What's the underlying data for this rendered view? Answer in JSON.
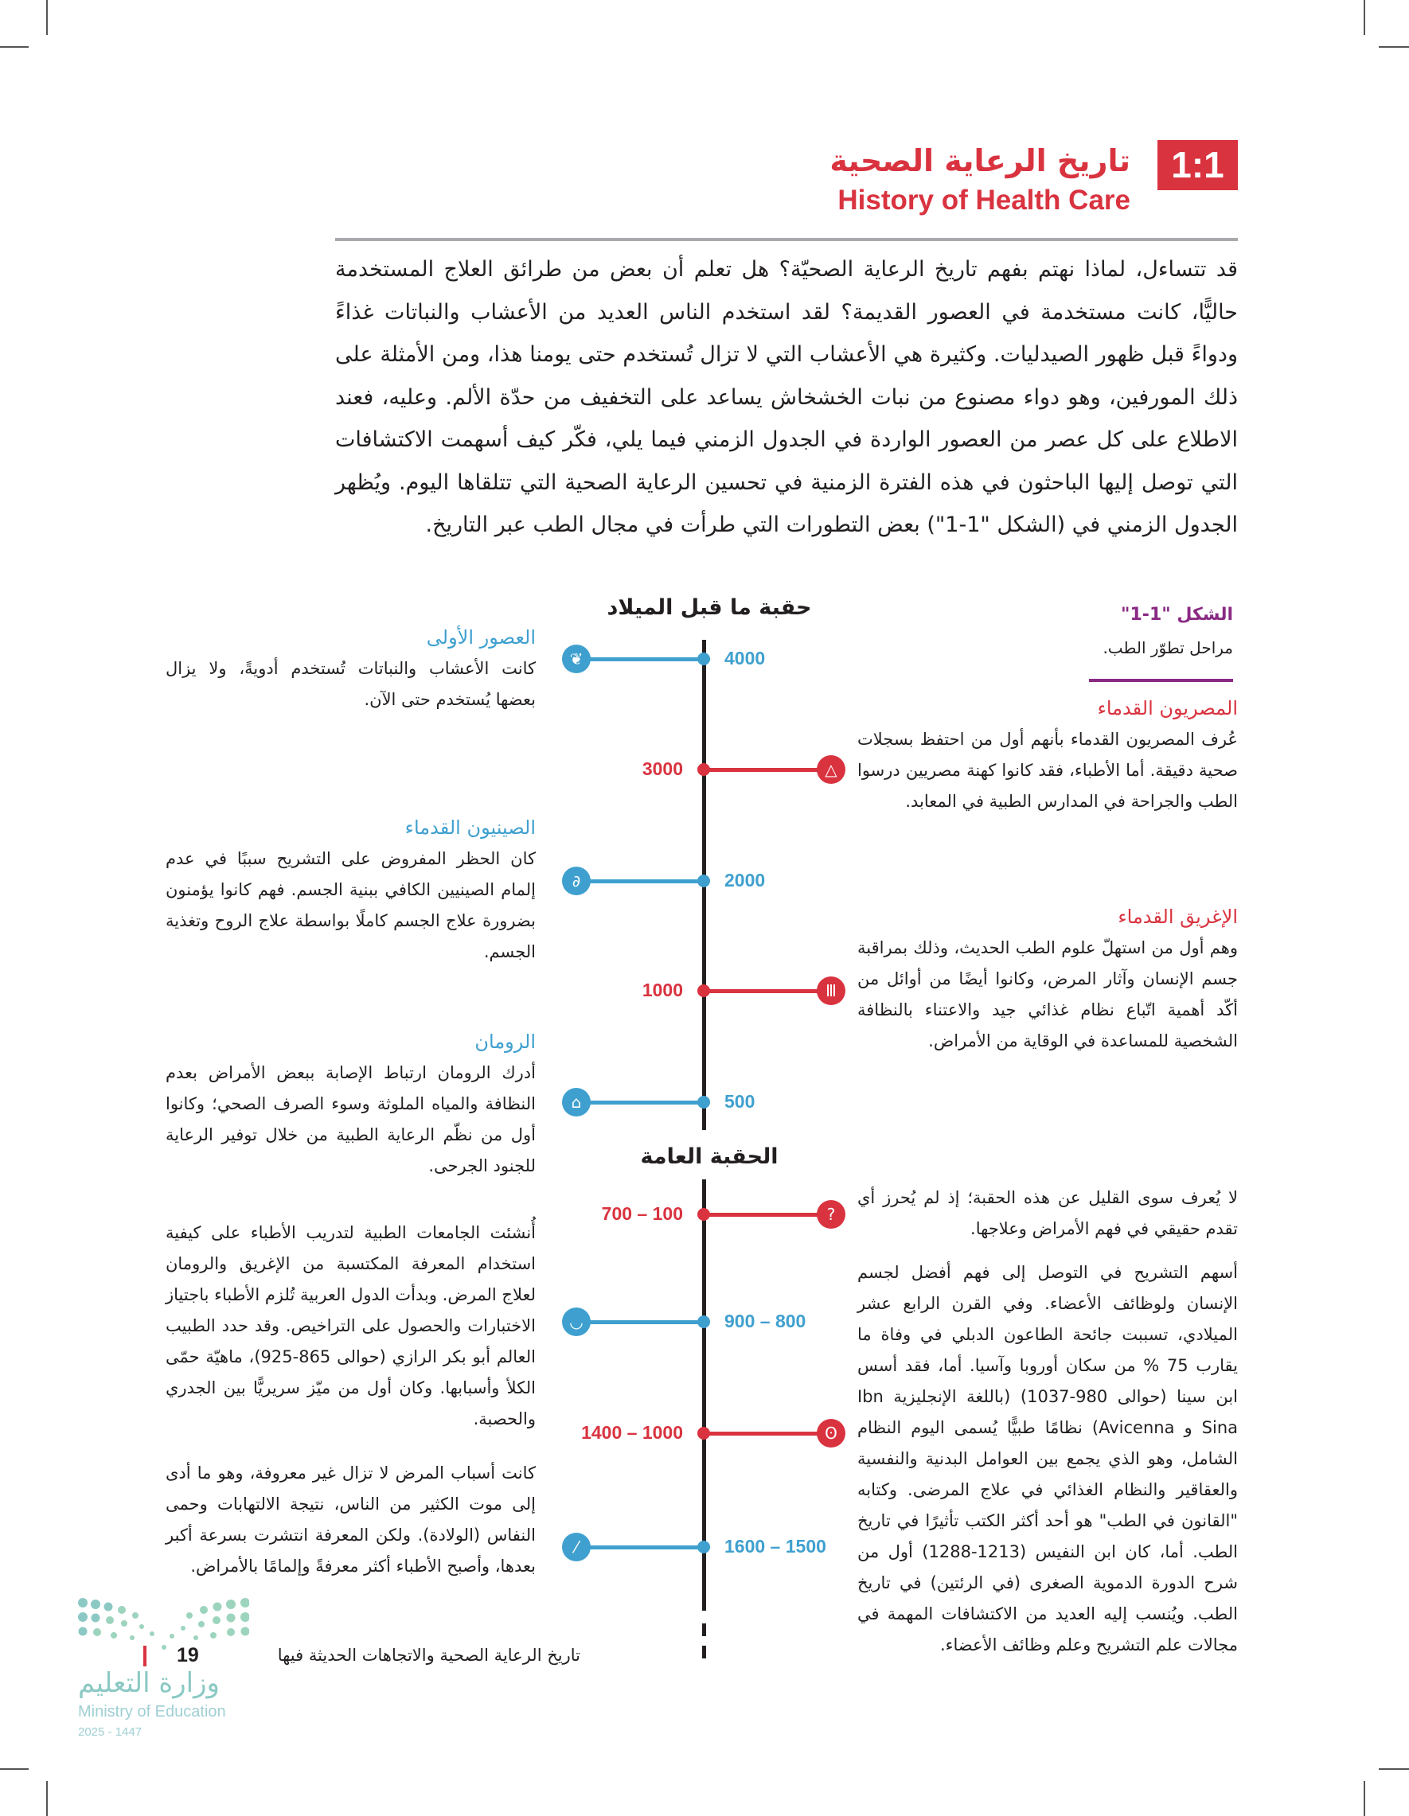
{
  "header": {
    "section_number": "1:1",
    "title_ar": "تاريخ الرعاية الصحية",
    "title_en": "History of Health Care"
  },
  "intro": "قد تتساءل، لماذا نهتم بفهم تاريخ الرعاية الصحيّة؟ هل تعلم أن بعض من طرائق العلاج المستخدمة حاليًّا، كانت مستخدمة في العصور القديمة؟ لقد استخدم الناس العديد من الأعشاب والنباتات غذاءً ودواءً قبل ظهور الصيدليات. وكثيرة هي الأعشاب التي لا تزال تُستخدم حتى يومنا هذا، ومن الأمثلة على ذلك المورفين، وهو دواء مصنوع من نبات الخشخاش يساعد على التخفيف من حدّة الألم. وعليه، فعند الاطلاع على كل عصر من العصور الواردة في الجدول الزمني فيما يلي، فكّر كيف أسهمت الاكتشافات التي توصل إليها الباحثون في هذه الفترة الزمنية في تحسين الرعاية الصحية التي تتلقاها اليوم. ويُظهر الجدول الزمني في (الشكل \"1-1\") بعض التطورات التي طرأت في مجال الطب عبر التاريخ.",
  "figure": {
    "label": "الشكل \"1-1\"",
    "caption": "مراحل تطوّر الطب."
  },
  "eras": {
    "bc": "حقبة ما قبل الميلاد",
    "ad": "الحقبة العامة"
  },
  "colors": {
    "red": "#d9333f",
    "blue": "#3fa0cf",
    "purple": "#8a2a84"
  },
  "timeline": [
    {
      "label": "4000",
      "side": "left",
      "color": "blue",
      "icon": "tree-icon"
    },
    {
      "label": "3000",
      "side": "right",
      "color": "red",
      "icon": "pyramid-icon"
    },
    {
      "label": "2000",
      "side": "left",
      "color": "blue",
      "icon": "dragon-icon"
    },
    {
      "label": "1000",
      "side": "right",
      "color": "red",
      "icon": "greek-column-icon"
    },
    {
      "label": "500",
      "side": "left",
      "color": "blue",
      "icon": "roman-temple-icon"
    },
    {
      "label": "700 – 100",
      "side": "right",
      "color": "red",
      "icon": "question-mark-icon"
    },
    {
      "label": "900 – 800",
      "side": "left",
      "color": "blue",
      "icon": "mortar-bowl-icon"
    },
    {
      "label": "1400 – 1000",
      "side": "right",
      "color": "red",
      "icon": "lungs-icon"
    },
    {
      "label": "1600 – 1500",
      "side": "left",
      "color": "blue",
      "icon": "bones-icon"
    }
  ],
  "left_blocks": [
    {
      "heading": "العصور الأولى",
      "text": "كانت الأعشاب والنباتات تُستخدم أدويةً، ولا يزال بعضها يُستخدم حتى الآن."
    },
    {
      "heading": "الصينيون القدماء",
      "text": "كان الحظر المفروض على التشريح سببًا في عدم إلمام الصينيين الكافي ببنية الجسم. فهم كانوا يؤمنون بضرورة علاج الجسم كاملًا بواسطة علاج الروح وتغذية الجسم."
    },
    {
      "heading": "الرومان",
      "text": "أدرك الرومان ارتباط الإصابة ببعض الأمراض بعدم النظافة والمياه الملوثة وسوء الصرف الصحي؛ وكانوا أول من نظّم الرعاية الطبية من خلال توفير الرعاية للجنود الجرحى."
    },
    {
      "heading": "",
      "text": "أُنشئت الجامعات الطبية لتدريب الأطباء على كيفية استخدام المعرفة المكتسبة من الإغريق والرومان لعلاج المرض. وبدأت الدول العربية تُلزم الأطباء باجتياز الاختبارات والحصول على التراخيص. وقد حدد الطبيب العالم أبو بكر الرازي (حوالى 865-925)، ماهيّة حمّى الكلأ وأسبابها. وكان أول من ميّز سريريًّا بين الجدري والحصبة."
    },
    {
      "heading": "",
      "text": "كانت أسباب المرض لا تزال غير معروفة، وهو ما أدى إلى موت الكثير من الناس، نتيجة الالتهابات وحمى النفاس (الولادة). ولكن المعرفة انتشرت بسرعة أكبر بعدها، وأصبح الأطباء أكثر معرفةً وإلمامًا بالأمراض."
    }
  ],
  "right_blocks": [
    {
      "heading": "المصريون القدماء",
      "text": "عُرف المصريون القدماء بأنهم أول من احتفظ بسجلات صحية دقيقة. أما الأطباء، فقد كانوا كهنة مصريين درسوا الطب والجراحة في المدارس الطبية في المعابد."
    },
    {
      "heading": "الإغريق القدماء",
      "text": "وهم أول من استهلّ علوم الطب الحديث، وذلك بمراقبة جسم الإنسان وآثار المرض، وكانوا أيضًا من أوائل من أكّد أهمية اتّباع نظام غذائي جيد والاعتناء بالنظافة الشخصية للمساعدة في الوقاية من الأمراض."
    },
    {
      "heading": "",
      "text": "لا يُعرف سوى القليل عن هذه الحقبة؛ إذ لم يُحرز أي تقدم حقيقي في فهم الأمراض وعلاجها."
    },
    {
      "heading": "",
      "text": "أسهم التشريح في التوصل إلى فهم أفضل لجسم الإنسان ولوظائف الأعضاء. وفي القرن الرابع عشر الميلادي، تسببت جائحة الطاعون الدبلي في وفاة ما يقارب 75 % من سكان أوروبا وآسيا. أما، فقد أسس ابن سينا (حوالى 980-1037) (باللغة الإنجليزية Ibn Sina و Avicenna) نظامًا طبيًّا يُسمى اليوم النظام الشامل، وهو الذي يجمع بين العوامل البدنية والنفسية والعقاقير والنظام الغذائي في علاج المرضى. وكتابه \"القانون في الطب\" هو أحد أكثر الكتب تأثيرًا في تاريخ الطب. أما، كان ابن النفيس (1213-1288) أول من شرح الدورة الدموية الصغرى (في الرئتين) في تاريخ الطب. ويُنسب إليه العديد من الاكتشافات المهمة في مجالات علم التشريح وعلم وظائف الأعضاء."
    }
  ],
  "footer": {
    "book_title": "تاريخ الرعاية الصحية والاتجاهات الحديثة فيها",
    "page_number": "19",
    "logo_ar": "وزارة التعليم",
    "logo_en": "Ministry of Education",
    "logo_year": "2025 - 1447"
  }
}
